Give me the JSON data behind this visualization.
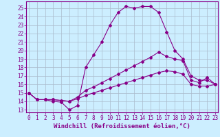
{
  "xlabel": "Windchill (Refroidissement éolien,°C)",
  "background_color": "#cceeff",
  "grid_color": "#aabbcc",
  "line_color": "#880088",
  "x_ticks": [
    0,
    1,
    2,
    3,
    4,
    5,
    6,
    7,
    8,
    9,
    10,
    11,
    12,
    13,
    14,
    15,
    16,
    17,
    18,
    19,
    20,
    21,
    22,
    23
  ],
  "y_ticks": [
    13,
    14,
    15,
    16,
    17,
    18,
    19,
    20,
    21,
    22,
    23,
    24,
    25
  ],
  "ylim": [
    12.7,
    25.8
  ],
  "xlim": [
    -0.3,
    23.3
  ],
  "line1_x": [
    0,
    1,
    2,
    3,
    4,
    5,
    6,
    7,
    8,
    9,
    10,
    11,
    12,
    13,
    14,
    15,
    16,
    17,
    18,
    19,
    20,
    21,
    22,
    23
  ],
  "line1_y": [
    15.0,
    14.2,
    14.2,
    14.0,
    13.9,
    13.0,
    13.5,
    18.0,
    19.5,
    21.0,
    23.0,
    24.5,
    25.2,
    25.0,
    25.2,
    25.2,
    24.5,
    22.2,
    20.0,
    19.0,
    17.0,
    16.5,
    16.5,
    16.0
  ],
  "line2_x": [
    0,
    1,
    2,
    3,
    4,
    5,
    6,
    7,
    8,
    9,
    10,
    11,
    12,
    13,
    14,
    15,
    16,
    17,
    18,
    19,
    20,
    21,
    22,
    23
  ],
  "line2_y": [
    15.0,
    14.2,
    14.2,
    14.2,
    14.1,
    14.0,
    14.5,
    15.3,
    15.7,
    16.2,
    16.7,
    17.2,
    17.7,
    18.2,
    18.7,
    19.2,
    19.8,
    19.3,
    19.0,
    18.8,
    16.5,
    16.2,
    16.8,
    16.0
  ],
  "line3_x": [
    0,
    1,
    2,
    3,
    4,
    5,
    6,
    7,
    8,
    9,
    10,
    11,
    12,
    13,
    14,
    15,
    16,
    17,
    18,
    19,
    20,
    21,
    22,
    23
  ],
  "line3_y": [
    15.0,
    14.2,
    14.2,
    14.2,
    14.1,
    14.0,
    14.3,
    14.7,
    15.0,
    15.3,
    15.6,
    15.9,
    16.2,
    16.5,
    16.8,
    17.1,
    17.4,
    17.6,
    17.5,
    17.2,
    16.0,
    15.8,
    15.8,
    16.0
  ],
  "tick_fontsize": 5.5,
  "xlabel_fontsize": 6.5,
  "marker": "D",
  "marker_size": 2.0,
  "line_width": 0.8
}
